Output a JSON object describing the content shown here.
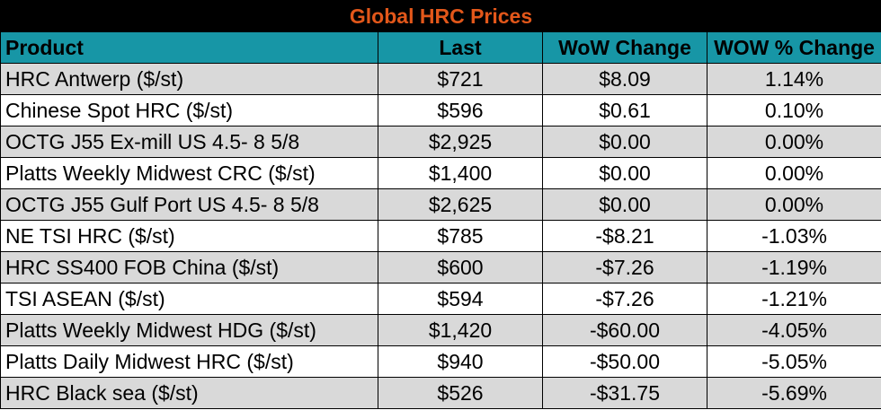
{
  "title": "Global HRC Prices",
  "colors": {
    "title_bg": "#000000",
    "title_text": "#e2571a",
    "header_bg": "#1796a6",
    "band": "#d9d9d9"
  },
  "headers": [
    "Product",
    "Last",
    "WoW Change",
    "WOW % Change"
  ],
  "rows": [
    [
      "HRC Antwerp ($/st)",
      "$721",
      "$8.09",
      "1.14%"
    ],
    [
      "Chinese Spot HRC ($/st)",
      "$596",
      "$0.61",
      "0.10%"
    ],
    [
      "OCTG J55 Ex-mill US 4.5- 8 5/8",
      "$2,925",
      "$0.00",
      "0.00%"
    ],
    [
      "Platts Weekly Midwest CRC ($/st)",
      "$1,400",
      "$0.00",
      "0.00%"
    ],
    [
      "OCTG J55 Gulf Port US 4.5- 8 5/8",
      "$2,625",
      "$0.00",
      "0.00%"
    ],
    [
      "NE TSI HRC ($/st)",
      "$785",
      "-$8.21",
      "-1.03%"
    ],
    [
      "HRC SS400 FOB China ($/st)",
      "$600",
      "-$7.26",
      "-1.19%"
    ],
    [
      "TSI ASEAN ($/st)",
      "$594",
      "-$7.26",
      "-1.21%"
    ],
    [
      "Platts Weekly Midwest HDG ($/st)",
      "$1,420",
      "-$60.00",
      "-4.05%"
    ],
    [
      "Platts Daily Midwest HRC ($/st)",
      "$940",
      "-$50.00",
      "-5.05%"
    ],
    [
      "HRC Black sea ($/st)",
      "$526",
      "-$31.75",
      "-5.69%"
    ]
  ]
}
